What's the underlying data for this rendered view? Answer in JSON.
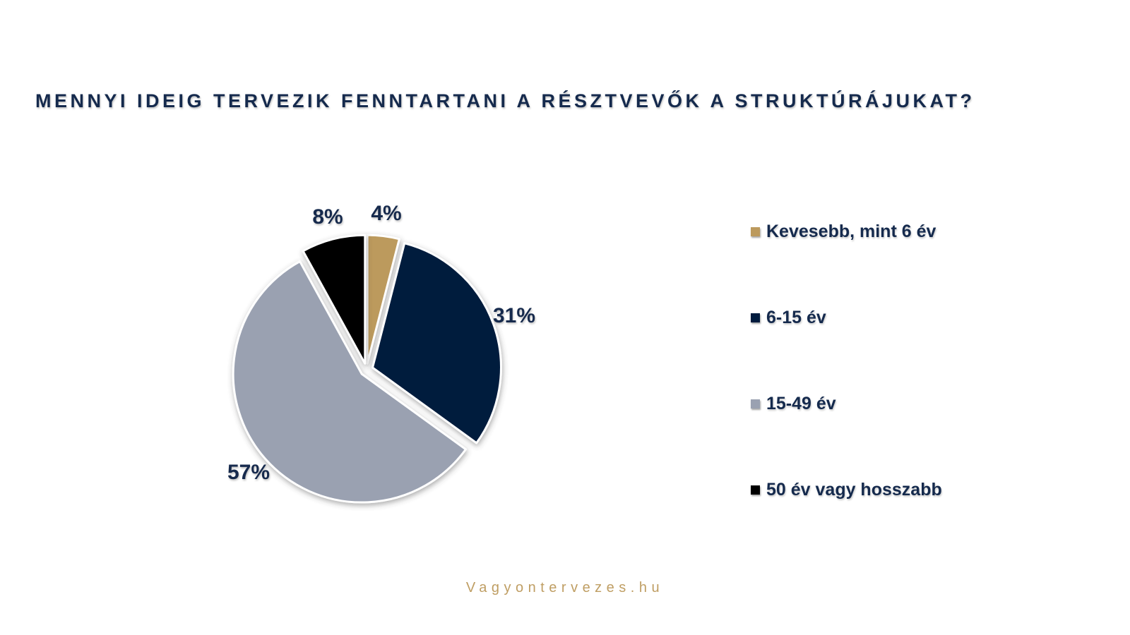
{
  "title": "MENNYI IDEIG TERVEZIK FENNTARTANI A RÉSZTVEVŐK A STRUKTÚRÁJUKAT?",
  "footer": "Vagyontervezes.hu",
  "colors": {
    "text_navy": "#152a4d",
    "footer_gold": "#bf9e63",
    "background": "#ffffff"
  },
  "chart_data": {
    "type": "pie",
    "title": "Mennyi ideig tervezik fenntartani a résztvevők a struktúrájukat?",
    "direction": "clockwise",
    "start_angle_deg": 0,
    "legend_position": "right",
    "exploded": true,
    "slices": [
      {
        "label": "Kevesebb, mint 6 év",
        "value_pct": 4,
        "display": "4%",
        "color": "#bc9a5d"
      },
      {
        "label": "6-15 év",
        "value_pct": 31,
        "display": "31%",
        "color": "#001b3e"
      },
      {
        "label": "15-49 év",
        "value_pct": 57,
        "display": "57%",
        "color": "#9aa1b1"
      },
      {
        "label": "50 év vagy hosszabb",
        "value_pct": 8,
        "display": "8%",
        "color": "#000000"
      }
    ]
  }
}
